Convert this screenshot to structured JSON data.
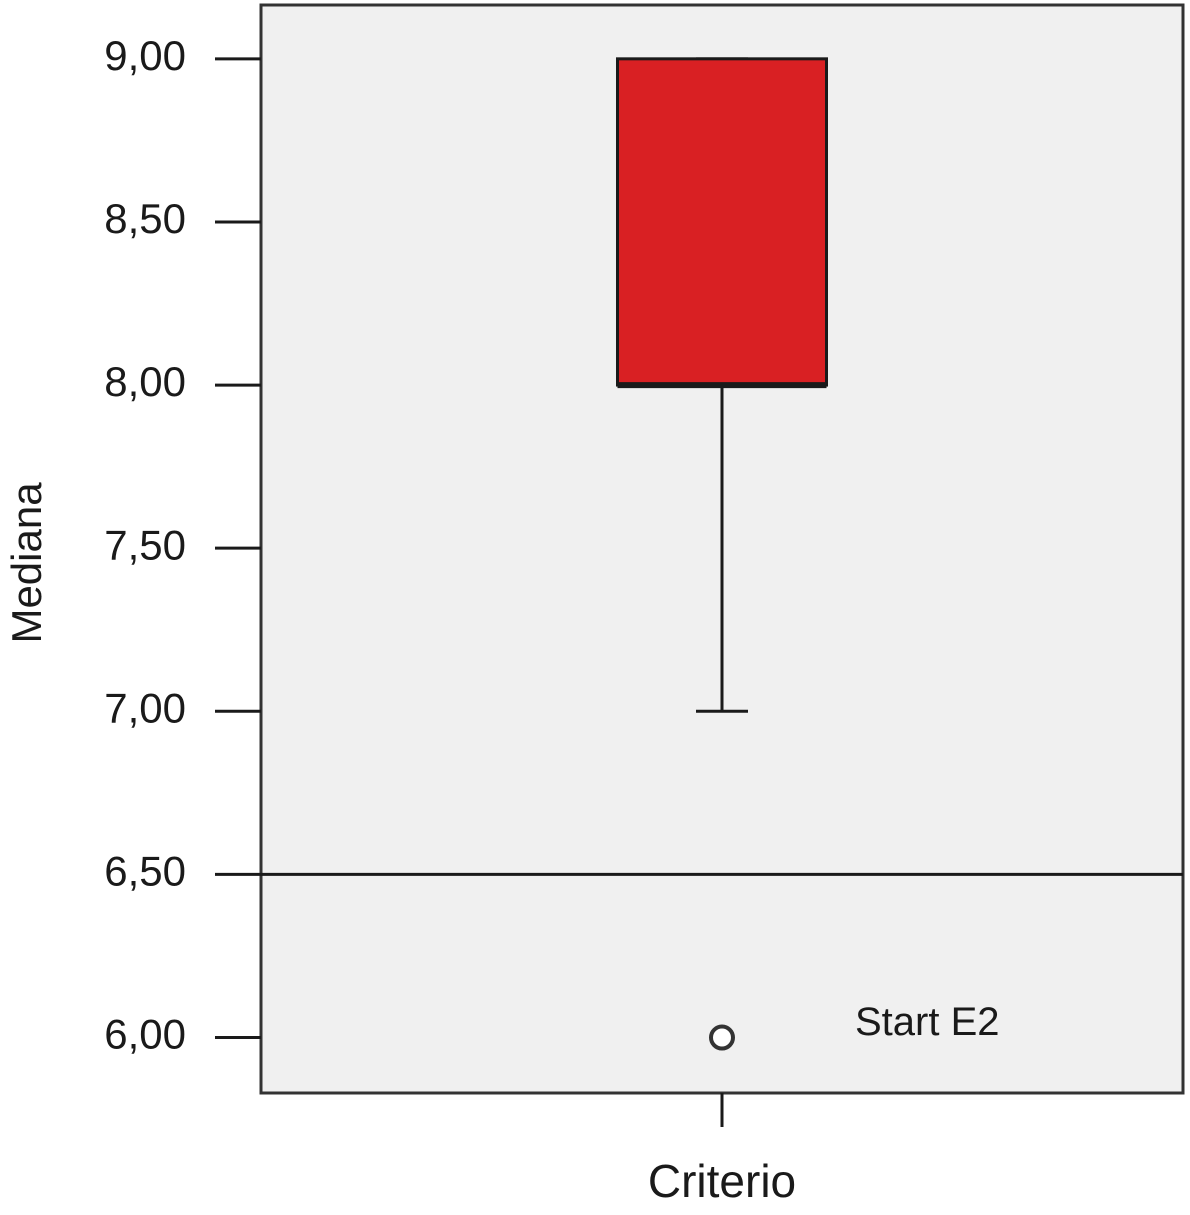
{
  "chart_data": {
    "type": "box",
    "y_label": "Mediana",
    "categories": [
      "Criterio"
    ],
    "boxes": [
      {
        "min": 7,
        "q1": 8,
        "median": 8,
        "q3": 9,
        "max": 9,
        "color": "#d92023",
        "outliers": [
          6
        ],
        "outlier_labels": [
          "Start E2"
        ]
      }
    ],
    "reference_lines": [
      6.5
    ],
    "ylim": [
      5.83,
      9.165
    ],
    "yticks": [
      {
        "value": 6,
        "label": "6,00"
      },
      {
        "value": 6.5,
        "label": "6,50"
      },
      {
        "value": 7,
        "label": "7,00"
      },
      {
        "value": 7.5,
        "label": "7,50"
      },
      {
        "value": 8,
        "label": "8,00"
      },
      {
        "value": 8.5,
        "label": "8,50"
      },
      {
        "value": 9,
        "label": "9,00"
      }
    ]
  }
}
